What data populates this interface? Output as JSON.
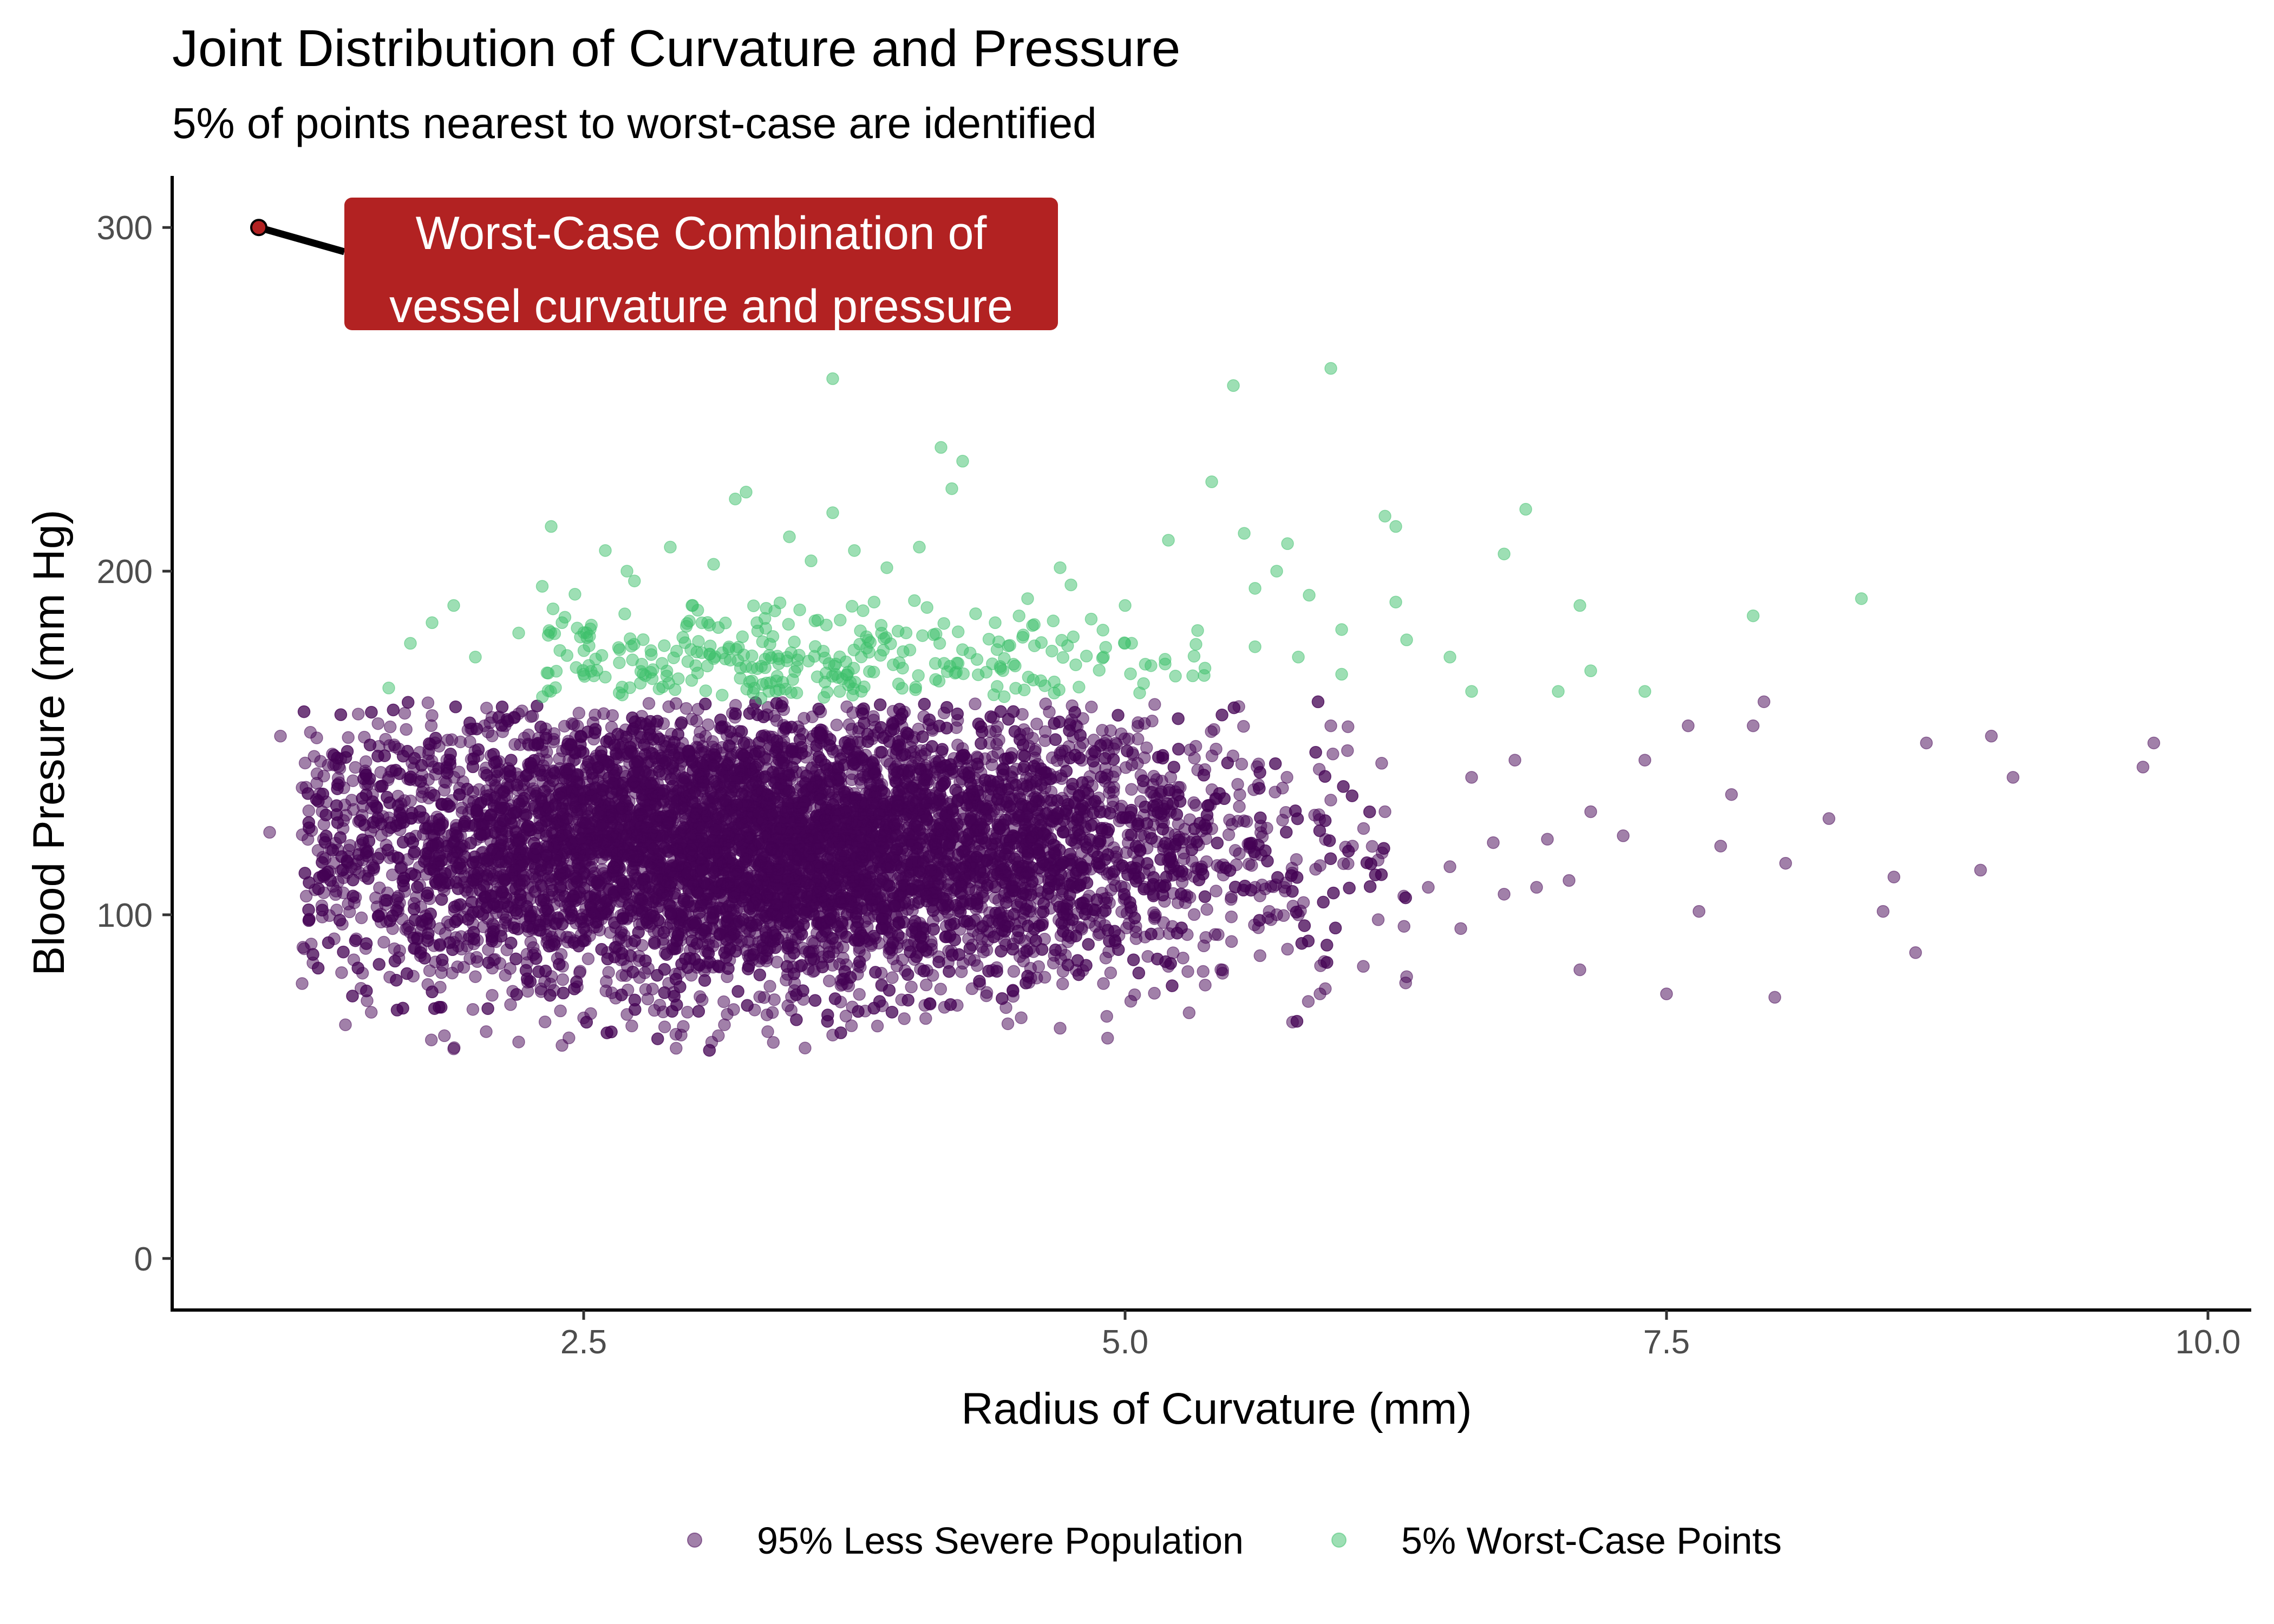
{
  "chart_data": {
    "type": "scatter",
    "title": "Joint Distribution of Curvature and Pressure",
    "subtitle": "5% of points nearest to worst-case are identified",
    "xlabel": "Radius of Curvature (mm)",
    "ylabel": "Blood Presure (mm Hg)",
    "xlim": [
      0.6,
      10.2
    ],
    "ylim": [
      -15,
      315
    ],
    "x_ticks": [
      2.5,
      5.0,
      7.5,
      10.0
    ],
    "x_tick_labels": [
      "2.5",
      "5.0",
      "7.5",
      "10.0"
    ],
    "y_ticks": [
      0,
      100,
      200,
      300
    ],
    "y_tick_labels": [
      "0",
      "100",
      "200",
      "300"
    ],
    "grid": false,
    "legend_position": "bottom",
    "series": [
      {
        "name": "95% Less Severe Population",
        "color": "#440154",
        "points": [
          [
            1.1,
            152
          ],
          [
            1.05,
            124
          ],
          [
            1.2,
            80
          ],
          [
            1.25,
            86
          ],
          [
            1.3,
            111
          ],
          [
            1.2,
            137
          ],
          [
            1.4,
            68
          ],
          [
            1.45,
            93
          ],
          [
            1.5,
            75
          ],
          [
            1.6,
            140
          ],
          [
            1.75,
            98
          ],
          [
            1.8,
            158
          ],
          [
            1.9,
            61
          ],
          [
            2.0,
            82
          ],
          [
            2.05,
            66
          ],
          [
            2.2,
            63
          ],
          [
            2.4,
            62
          ],
          [
            2.5,
            70
          ],
          [
            2.7,
            71
          ],
          [
            2.95,
            65
          ],
          [
            3.15,
            68
          ],
          [
            3.35,
            66
          ],
          [
            3.65,
            65
          ],
          [
            3.8,
            72
          ],
          [
            4.1,
            74
          ],
          [
            4.45,
            73
          ],
          [
            4.7,
            67
          ],
          [
            4.9,
            80
          ],
          [
            5.05,
            95
          ],
          [
            5.2,
            85
          ],
          [
            5.3,
            148
          ],
          [
            5.45,
            83
          ],
          [
            5.6,
            108
          ],
          [
            5.75,
            90
          ],
          [
            5.8,
            100
          ],
          [
            5.9,
            77
          ],
          [
            5.95,
            155
          ],
          [
            6.05,
            120
          ],
          [
            6.1,
            85
          ],
          [
            6.2,
            130
          ],
          [
            6.3,
            82
          ],
          [
            6.4,
            108
          ],
          [
            6.5,
            114
          ],
          [
            6.55,
            96
          ],
          [
            6.6,
            140
          ],
          [
            6.7,
            121
          ],
          [
            6.75,
            106
          ],
          [
            6.8,
            145
          ],
          [
            6.9,
            108
          ],
          [
            6.95,
            122
          ],
          [
            7.05,
            110
          ],
          [
            7.1,
            84
          ],
          [
            7.15,
            130
          ],
          [
            7.3,
            123
          ],
          [
            7.4,
            145
          ],
          [
            7.5,
            77
          ],
          [
            7.6,
            155
          ],
          [
            7.65,
            101
          ],
          [
            7.75,
            120
          ],
          [
            7.8,
            135
          ],
          [
            7.9,
            155
          ],
          [
            7.95,
            162
          ],
          [
            8.0,
            76
          ],
          [
            8.05,
            115
          ],
          [
            8.25,
            128
          ],
          [
            8.5,
            101
          ],
          [
            8.55,
            111
          ],
          [
            8.65,
            89
          ],
          [
            8.7,
            150
          ],
          [
            8.95,
            113
          ],
          [
            9.0,
            152
          ],
          [
            9.1,
            140
          ],
          [
            9.7,
            143
          ],
          [
            9.75,
            150
          ]
        ],
        "dense_region": {
          "center": [
            3.3,
            120
          ],
          "spread": [
            1.1,
            20
          ],
          "x_range": [
            1.2,
            6.3
          ],
          "y_range": [
            60,
            162
          ],
          "approx_count": 9000
        }
      },
      {
        "name": "5% Worst-Case Points",
        "color": "#3bbf6a",
        "points": [
          [
            1.7,
            179
          ],
          [
            1.8,
            185
          ],
          [
            1.9,
            190
          ],
          [
            2.0,
            175
          ],
          [
            2.2,
            182
          ],
          [
            2.35,
            213
          ],
          [
            2.5,
            170
          ],
          [
            2.6,
            206
          ],
          [
            2.7,
            200
          ],
          [
            2.9,
            207
          ],
          [
            3.0,
            190
          ],
          [
            3.1,
            202
          ],
          [
            3.2,
            221
          ],
          [
            3.25,
            223
          ],
          [
            3.45,
            210
          ],
          [
            3.55,
            203
          ],
          [
            3.65,
            217
          ],
          [
            3.65,
            256
          ],
          [
            3.75,
            206
          ],
          [
            3.9,
            201
          ],
          [
            4.05,
            207
          ],
          [
            4.15,
            236
          ],
          [
            4.2,
            224
          ],
          [
            4.25,
            232
          ],
          [
            4.55,
            192
          ],
          [
            4.7,
            201
          ],
          [
            4.75,
            196
          ],
          [
            5.0,
            190
          ],
          [
            5.2,
            209
          ],
          [
            5.4,
            226
          ],
          [
            5.5,
            254
          ],
          [
            5.55,
            211
          ],
          [
            5.6,
            195
          ],
          [
            5.7,
            200
          ],
          [
            5.75,
            208
          ],
          [
            5.8,
            175
          ],
          [
            5.85,
            193
          ],
          [
            5.95,
            259
          ],
          [
            6.0,
            183
          ],
          [
            6.2,
            216
          ],
          [
            6.25,
            191
          ],
          [
            6.25,
            213
          ],
          [
            6.3,
            180
          ],
          [
            6.5,
            175
          ],
          [
            6.6,
            165
          ],
          [
            6.75,
            205
          ],
          [
            6.85,
            218
          ],
          [
            7.0,
            165
          ],
          [
            7.1,
            190
          ],
          [
            7.15,
            171
          ],
          [
            7.4,
            165
          ],
          [
            7.9,
            187
          ],
          [
            8.4,
            192
          ],
          [
            3.3,
            185
          ],
          [
            4.9,
            175
          ],
          [
            2.4,
            185
          ],
          [
            4.4,
            185
          ],
          [
            6.0,
            170
          ],
          [
            1.6,
            166
          ],
          [
            5.6,
            178
          ]
        ],
        "dense_region": {
          "center": [
            3.3,
            172
          ],
          "spread": [
            1.0,
            9
          ],
          "x_range": [
            2.3,
            5.5
          ],
          "y_range": [
            163,
            200
          ],
          "approx_count": 450
        }
      }
    ],
    "worst_case_point": {
      "x": 1.0,
      "y": 300,
      "color": "#b22222"
    },
    "annotation": {
      "lines": [
        "Worst-Case Combination of",
        "vessel curvature and pressure"
      ],
      "fill": "#b22222",
      "text_color": "#ffffff"
    }
  }
}
